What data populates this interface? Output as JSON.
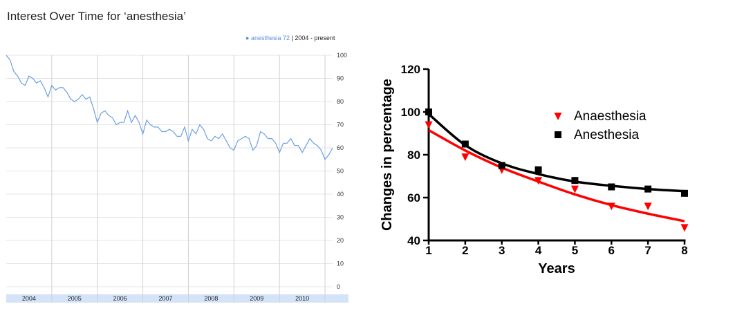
{
  "page_title": "Interest Over Time for  ‘anesthesia’",
  "trends_legend": {
    "term": "anesthesia",
    "score": "72",
    "range": "2004 - present"
  },
  "chart_data": [
    {
      "type": "line",
      "series": [
        {
          "name": "anesthesia",
          "color": "#6a9ee6",
          "values": [
            100,
            98,
            93,
            91,
            88,
            87,
            91,
            90,
            88,
            89,
            86,
            82,
            87,
            85,
            86,
            86,
            84,
            81,
            80,
            81,
            83,
            81,
            82,
            77,
            71,
            75,
            76,
            74,
            73,
            70,
            71,
            71,
            76,
            71,
            74,
            71,
            66,
            72,
            70,
            69,
            69,
            67,
            67,
            68,
            67,
            65,
            65,
            69,
            63,
            68,
            66,
            70,
            68,
            64,
            63,
            65,
            64,
            66,
            63,
            60,
            59,
            63,
            64,
            65,
            64,
            59,
            61,
            67,
            66,
            64,
            64,
            62,
            58,
            62,
            62,
            64,
            61,
            61,
            58,
            61,
            64,
            62,
            61,
            59,
            55,
            57,
            60
          ]
        }
      ],
      "x_ticks": [
        "2004",
        "2005",
        "2006",
        "2007",
        "2008",
        "2009",
        "2010"
      ],
      "y_ticks": [
        0,
        10,
        20,
        30,
        40,
        50,
        60,
        70,
        80,
        90,
        100
      ],
      "ylim": [
        0,
        100
      ],
      "grid": true
    },
    {
      "type": "scatter",
      "xlabel": "Years",
      "ylabel": "Changes in percentage",
      "xlim": [
        1,
        8
      ],
      "ylim": [
        40,
        120
      ],
      "x_ticks": [
        1,
        2,
        3,
        4,
        5,
        6,
        7,
        8
      ],
      "y_ticks": [
        40,
        60,
        80,
        100,
        120
      ],
      "legend_position": "top-right",
      "series": [
        {
          "name": "Anaesthesia",
          "marker": "triangle-down",
          "color": "#ff0000",
          "x": [
            1,
            2,
            3,
            4,
            5,
            6,
            7,
            8
          ],
          "y": [
            94,
            79,
            73,
            68,
            64,
            56,
            56,
            46
          ],
          "fit_y": [
            91.5,
            82,
            74,
            67.5,
            61.5,
            56.5,
            52.5,
            49
          ]
        },
        {
          "name": "Anesthesia",
          "marker": "square",
          "color": "#000000",
          "x": [
            1,
            2,
            3,
            4,
            5,
            6,
            7,
            8
          ],
          "y": [
            100,
            85,
            75,
            73,
            68,
            65,
            64,
            62
          ],
          "fit_y": [
            99,
            84.5,
            76,
            71,
            67.5,
            65.5,
            64,
            63
          ]
        }
      ]
    }
  ]
}
